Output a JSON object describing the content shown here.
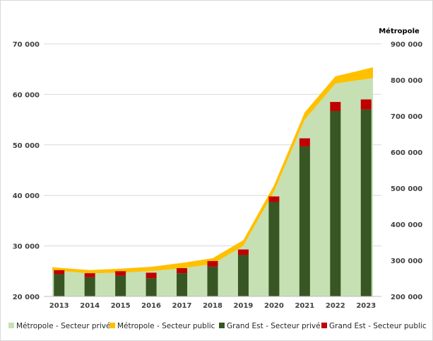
{
  "chart_data": {
    "type": "bar",
    "categories": [
      "2013",
      "2014",
      "2015",
      "2016",
      "2017",
      "2018",
      "2019",
      "2020",
      "2021",
      "2022",
      "2023"
    ],
    "y_left": {
      "ticks": [
        "20 000",
        "30 000",
        "40 000",
        "50 000",
        "60 000",
        "70 000"
      ],
      "range": [
        20000,
        70000
      ]
    },
    "y_right": {
      "title": "Métropole",
      "ticks": [
        "200 000",
        "300 000",
        "400 000",
        "500 000",
        "600 000",
        "700 000",
        "800 000",
        "900 000"
      ],
      "range": [
        200000,
        900000
      ]
    },
    "area_series": [
      {
        "name": "Métropole - Secteur privé",
        "axis": "right",
        "color": "#c6e0b4",
        "values": [
          272000,
          264000,
          266000,
          270000,
          278000,
          290000,
          340000,
          490000,
          690000,
          790000,
          805000
        ]
      },
      {
        "name": "Métropole - Secteur public",
        "axis": "right",
        "color": "#ffc000",
        "values": [
          9000,
          9000,
          11000,
          12000,
          15000,
          16000,
          16000,
          18000,
          20000,
          20000,
          30000
        ]
      }
    ],
    "bar_series": [
      {
        "name": "Grand Est - Secteur privé",
        "axis": "left",
        "color": "#375623",
        "values": [
          24400,
          23800,
          24100,
          23600,
          24600,
          25900,
          28200,
          38700,
          49700,
          56700,
          57000
        ]
      },
      {
        "name": "Grand Est - Secteur public",
        "axis": "left",
        "color": "#c00000",
        "values": [
          800,
          800,
          900,
          1100,
          1000,
          1100,
          1100,
          1100,
          1600,
          1800,
          2000
        ]
      }
    ],
    "legend_position": "bottom",
    "grid": true
  },
  "legend": [
    {
      "label": "Métropole - Secteur privé",
      "color": "#c6e0b4"
    },
    {
      "label": "Métropole - Secteur public",
      "color": "#ffc000"
    },
    {
      "label": "Grand Est - Secteur privé",
      "color": "#375623"
    },
    {
      "label": "Grand Est - Secteur public",
      "color": "#c00000"
    }
  ]
}
